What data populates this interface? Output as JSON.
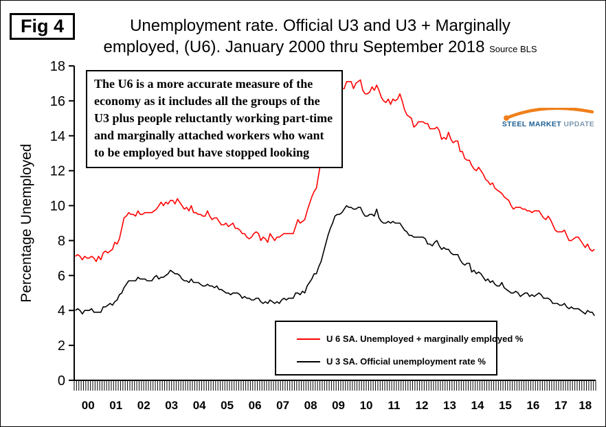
{
  "fig_label": "Fig 4",
  "title": {
    "line1": "Unemployment rate. Official U3 and U3 + Marginally",
    "line2": "employed, (U6). January 2000 thru September 2018",
    "source": "Source BLS"
  },
  "annotation": "The U6 is a more accurate measure of the economy as it includes all the groups of the U3 plus people reluctantly working part-time and marginally attached workers who want to be employed but have stopped looking",
  "logo": {
    "word1": "STEEL",
    "word2": "MARKET",
    "word3": "UPDATE",
    "accent_color": "#f07f1a",
    "text_color": "#1c5f93"
  },
  "chart_data": {
    "type": "line",
    "title": "Unemployment rate. Official U3 and U3 + Marginally employed, (U6). January 2000 thru September 2018",
    "xlabel": "",
    "ylabel": "Percentage Unemployed",
    "ylim": [
      0,
      18
    ],
    "ytick_step": 2,
    "grid": false,
    "legend_position": "inside-bottom",
    "x_unit": "month",
    "x_start": "2000-01",
    "x_end": "2018-09",
    "categories": [
      "00",
      "01",
      "02",
      "03",
      "04",
      "05",
      "06",
      "07",
      "08",
      "09",
      "10",
      "11",
      "12",
      "13",
      "14",
      "15",
      "16",
      "17",
      "18"
    ],
    "series": [
      {
        "key": "u6",
        "name": "U 6 SA. Unemployed + marginally employed %",
        "color": "#ff0000",
        "values": [
          7.1,
          7.2,
          7.1,
          6.9,
          7.1,
          7.0,
          7.0,
          7.1,
          7.0,
          6.8,
          7.1,
          6.9,
          7.3,
          7.4,
          7.3,
          7.4,
          7.5,
          7.9,
          7.8,
          8.1,
          8.7,
          9.3,
          9.4,
          9.6,
          9.5,
          9.5,
          9.4,
          9.7,
          9.5,
          9.5,
          9.6,
          9.6,
          9.6,
          9.6,
          9.7,
          9.8,
          10.0,
          10.2,
          10.0,
          10.2,
          10.1,
          10.3,
          10.3,
          10.1,
          10.4,
          10.2,
          10.0,
          9.8,
          9.9,
          9.7,
          10.0,
          9.6,
          9.6,
          9.5,
          9.5,
          9.4,
          9.4,
          9.7,
          9.4,
          9.2,
          9.3,
          9.3,
          9.1,
          8.9,
          8.9,
          9.0,
          8.8,
          8.9,
          9.0,
          8.7,
          8.7,
          8.6,
          8.4,
          8.4,
          8.2,
          8.1,
          8.2,
          8.4,
          8.5,
          8.4,
          8.0,
          8.2,
          8.1,
          7.9,
          8.4,
          8.2,
          8.0,
          8.2,
          8.2,
          8.3,
          8.4,
          8.4,
          8.4,
          8.4,
          8.4,
          8.8,
          9.2,
          9.0,
          9.1,
          9.2,
          9.7,
          10.1,
          10.5,
          10.8,
          11.0,
          11.8,
          12.6,
          13.6,
          14.2,
          15.2,
          15.8,
          15.9,
          16.5,
          16.5,
          16.4,
          16.7,
          16.7,
          17.1,
          17.1,
          17.1,
          16.7,
          17.0,
          17.1,
          17.2,
          16.6,
          16.4,
          16.4,
          16.5,
          16.8,
          16.6,
          16.9,
          16.6,
          16.2,
          16.0,
          15.9,
          16.1,
          15.8,
          16.1,
          16.0,
          16.1,
          16.4,
          16.0,
          15.5,
          15.2,
          15.1,
          15.0,
          14.5,
          14.6,
          14.8,
          14.8,
          14.8,
          14.7,
          14.7,
          14.4,
          14.4,
          14.4,
          14.5,
          14.3,
          13.8,
          13.9,
          13.8,
          14.2,
          13.8,
          13.6,
          13.7,
          13.7,
          13.1,
          13.1,
          12.7,
          12.6,
          12.6,
          12.3,
          12.1,
          12.0,
          12.2,
          12.0,
          11.8,
          11.5,
          11.4,
          11.2,
          11.3,
          11.0,
          10.9,
          10.8,
          10.7,
          10.5,
          10.4,
          10.3,
          10.0,
          9.8,
          9.9,
          9.9,
          9.9,
          9.8,
          9.8,
          9.7,
          9.7,
          9.6,
          9.7,
          9.7,
          9.7,
          9.5,
          9.3,
          9.2,
          9.4,
          9.2,
          8.9,
          8.6,
          8.5,
          8.5,
          8.5,
          8.6,
          8.3,
          8.0,
          8.0,
          8.1,
          8.2,
          8.2,
          8.0,
          7.8,
          7.6,
          7.8,
          7.5,
          7.4,
          7.5
        ]
      },
      {
        "key": "u3",
        "name": "U 3 SA. Official unemployment rate %",
        "color": "#000000",
        "values": [
          4.0,
          4.1,
          4.0,
          3.8,
          4.0,
          4.0,
          4.0,
          4.1,
          3.9,
          3.9,
          3.9,
          3.9,
          4.2,
          4.2,
          4.3,
          4.4,
          4.3,
          4.5,
          4.6,
          4.9,
          5.0,
          5.3,
          5.5,
          5.7,
          5.7,
          5.7,
          5.7,
          5.9,
          5.8,
          5.8,
          5.8,
          5.7,
          5.7,
          5.7,
          5.9,
          6.0,
          5.8,
          5.9,
          5.9,
          6.0,
          6.1,
          6.3,
          6.2,
          6.1,
          6.1,
          6.0,
          5.8,
          5.7,
          5.7,
          5.6,
          5.8,
          5.6,
          5.6,
          5.6,
          5.5,
          5.4,
          5.4,
          5.5,
          5.4,
          5.4,
          5.3,
          5.4,
          5.2,
          5.2,
          5.1,
          5.0,
          5.0,
          4.9,
          5.0,
          5.0,
          5.0,
          4.9,
          4.7,
          4.8,
          4.7,
          4.7,
          4.6,
          4.6,
          4.7,
          4.7,
          4.5,
          4.4,
          4.5,
          4.4,
          4.6,
          4.5,
          4.4,
          4.5,
          4.4,
          4.6,
          4.7,
          4.6,
          4.7,
          4.7,
          4.7,
          5.0,
          5.0,
          4.9,
          5.1,
          5.0,
          5.4,
          5.6,
          5.8,
          6.1,
          6.1,
          6.5,
          6.8,
          7.3,
          7.8,
          8.3,
          8.7,
          9.0,
          9.4,
          9.5,
          9.5,
          9.6,
          9.8,
          10.0,
          9.9,
          9.9,
          9.8,
          9.8,
          9.9,
          9.9,
          9.6,
          9.4,
          9.4,
          9.5,
          9.5,
          9.4,
          9.8,
          9.3,
          9.1,
          9.0,
          9.0,
          9.1,
          9.0,
          9.1,
          9.0,
          9.0,
          9.0,
          8.8,
          8.6,
          8.5,
          8.3,
          8.3,
          8.2,
          8.2,
          8.2,
          8.2,
          8.2,
          8.1,
          7.8,
          7.8,
          7.7,
          7.9,
          8.0,
          7.7,
          7.5,
          7.6,
          7.5,
          7.5,
          7.3,
          7.2,
          7.2,
          7.2,
          6.9,
          6.7,
          6.6,
          6.7,
          6.7,
          6.2,
          6.3,
          6.1,
          6.2,
          6.1,
          5.9,
          5.7,
          5.8,
          5.6,
          5.7,
          5.5,
          5.4,
          5.4,
          5.6,
          5.3,
          5.2,
          5.1,
          5.0,
          5.0,
          5.1,
          5.0,
          4.8,
          4.9,
          5.0,
          5.0,
          4.8,
          4.9,
          4.8,
          4.9,
          5.0,
          4.9,
          4.7,
          4.7,
          4.7,
          4.6,
          4.4,
          4.4,
          4.4,
          4.3,
          4.3,
          4.4,
          4.2,
          4.1,
          4.2,
          4.1,
          4.1,
          4.1,
          4.0,
          3.9,
          3.8,
          4.0,
          3.9,
          3.9,
          3.7
        ]
      }
    ]
  }
}
